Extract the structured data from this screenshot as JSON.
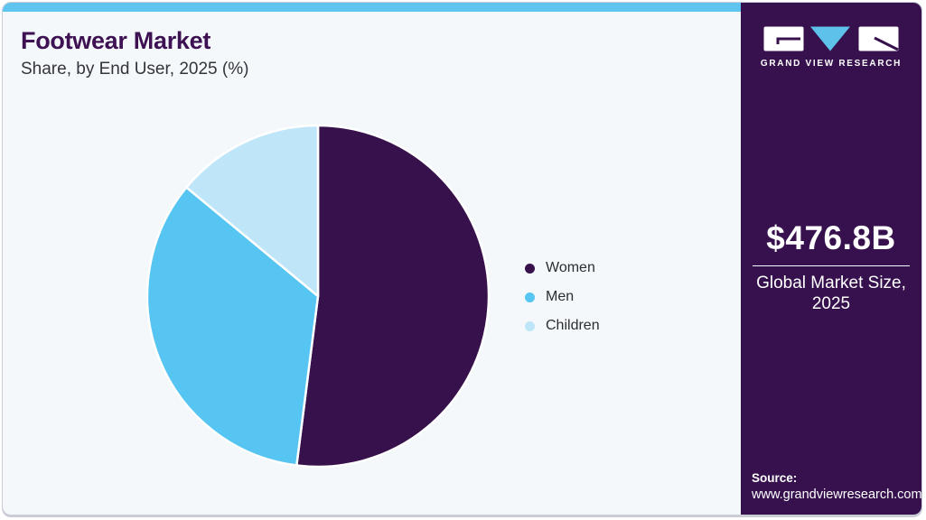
{
  "card": {
    "top_bar_color": "#5fc5ef",
    "background": "#f4f8fb",
    "border_color": "#c9cdd7"
  },
  "header": {
    "title": "Footwear Market",
    "subtitle": "Share, by End User, 2025 (%)",
    "title_color": "#3d1152"
  },
  "chart_data": {
    "type": "pie",
    "title": "Footwear Market Share, by End User, 2025 (%)",
    "categories": [
      "Women",
      "Men",
      "Children"
    ],
    "values": [
      52,
      34,
      14
    ],
    "unit": "%",
    "colors": [
      "#36114b",
      "#56c5f2",
      "#bfe6f8"
    ],
    "legend_position": "right",
    "start_angle_deg": 0,
    "direction": "clockwise",
    "separator_color": "#ffffff"
  },
  "legend": {
    "items": [
      {
        "label": "Women"
      },
      {
        "label": "Men"
      },
      {
        "label": "Children"
      }
    ]
  },
  "sidebar": {
    "background": "#36114d",
    "logo": {
      "brand": "GRAND VIEW RESEARCH",
      "triangle_color": "#5ec1ea",
      "glyph_color": "#36114d"
    },
    "market_size": {
      "value": "$476.8B",
      "label_line1": "Global Market Size,",
      "label_line2": "2025"
    },
    "source": {
      "label": "Source:",
      "url": "www.grandviewresearch.com"
    }
  }
}
